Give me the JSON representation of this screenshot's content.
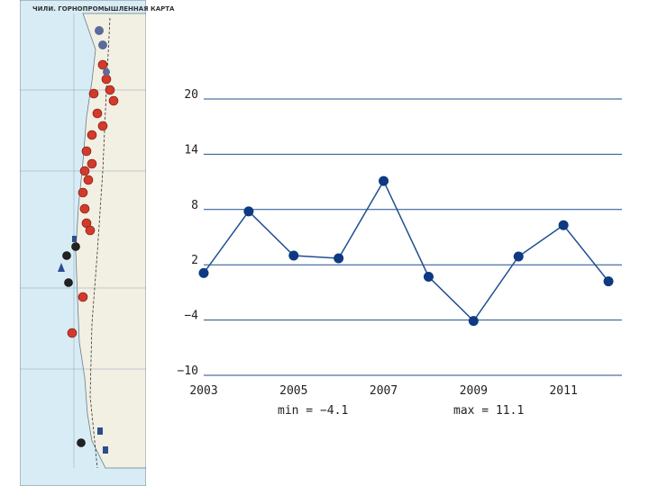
{
  "map": {
    "title": "ЧИЛИ. ГОРНОПРОМЫШЛЕННАЯ КАРТА"
  },
  "chart_data": {
    "type": "line",
    "x": [
      2003,
      2004,
      2005,
      2006,
      2007,
      2008,
      2009,
      2010,
      2011,
      2012
    ],
    "series": [
      {
        "values": [
          1.1,
          7.8,
          3.0,
          2.7,
          11.1,
          0.7,
          -4.1,
          2.9,
          6.3,
          0.2
        ]
      }
    ],
    "xticks": [
      "2003",
      "2005",
      "2007",
      "2009",
      "2011"
    ],
    "yticks": [
      "20",
      "14",
      "8",
      "2",
      "−4",
      "−10"
    ],
    "ylim": [
      -10,
      20
    ],
    "xlim": [
      2003,
      2012.3
    ],
    "grid": "horizontal",
    "annotations": {
      "min_label": "min = −4.1",
      "max_label": "max = 11.1"
    },
    "colors": {
      "line": "#1f4f8f",
      "marker": "#0d3a80",
      "grid": "#1f4f8f"
    }
  }
}
